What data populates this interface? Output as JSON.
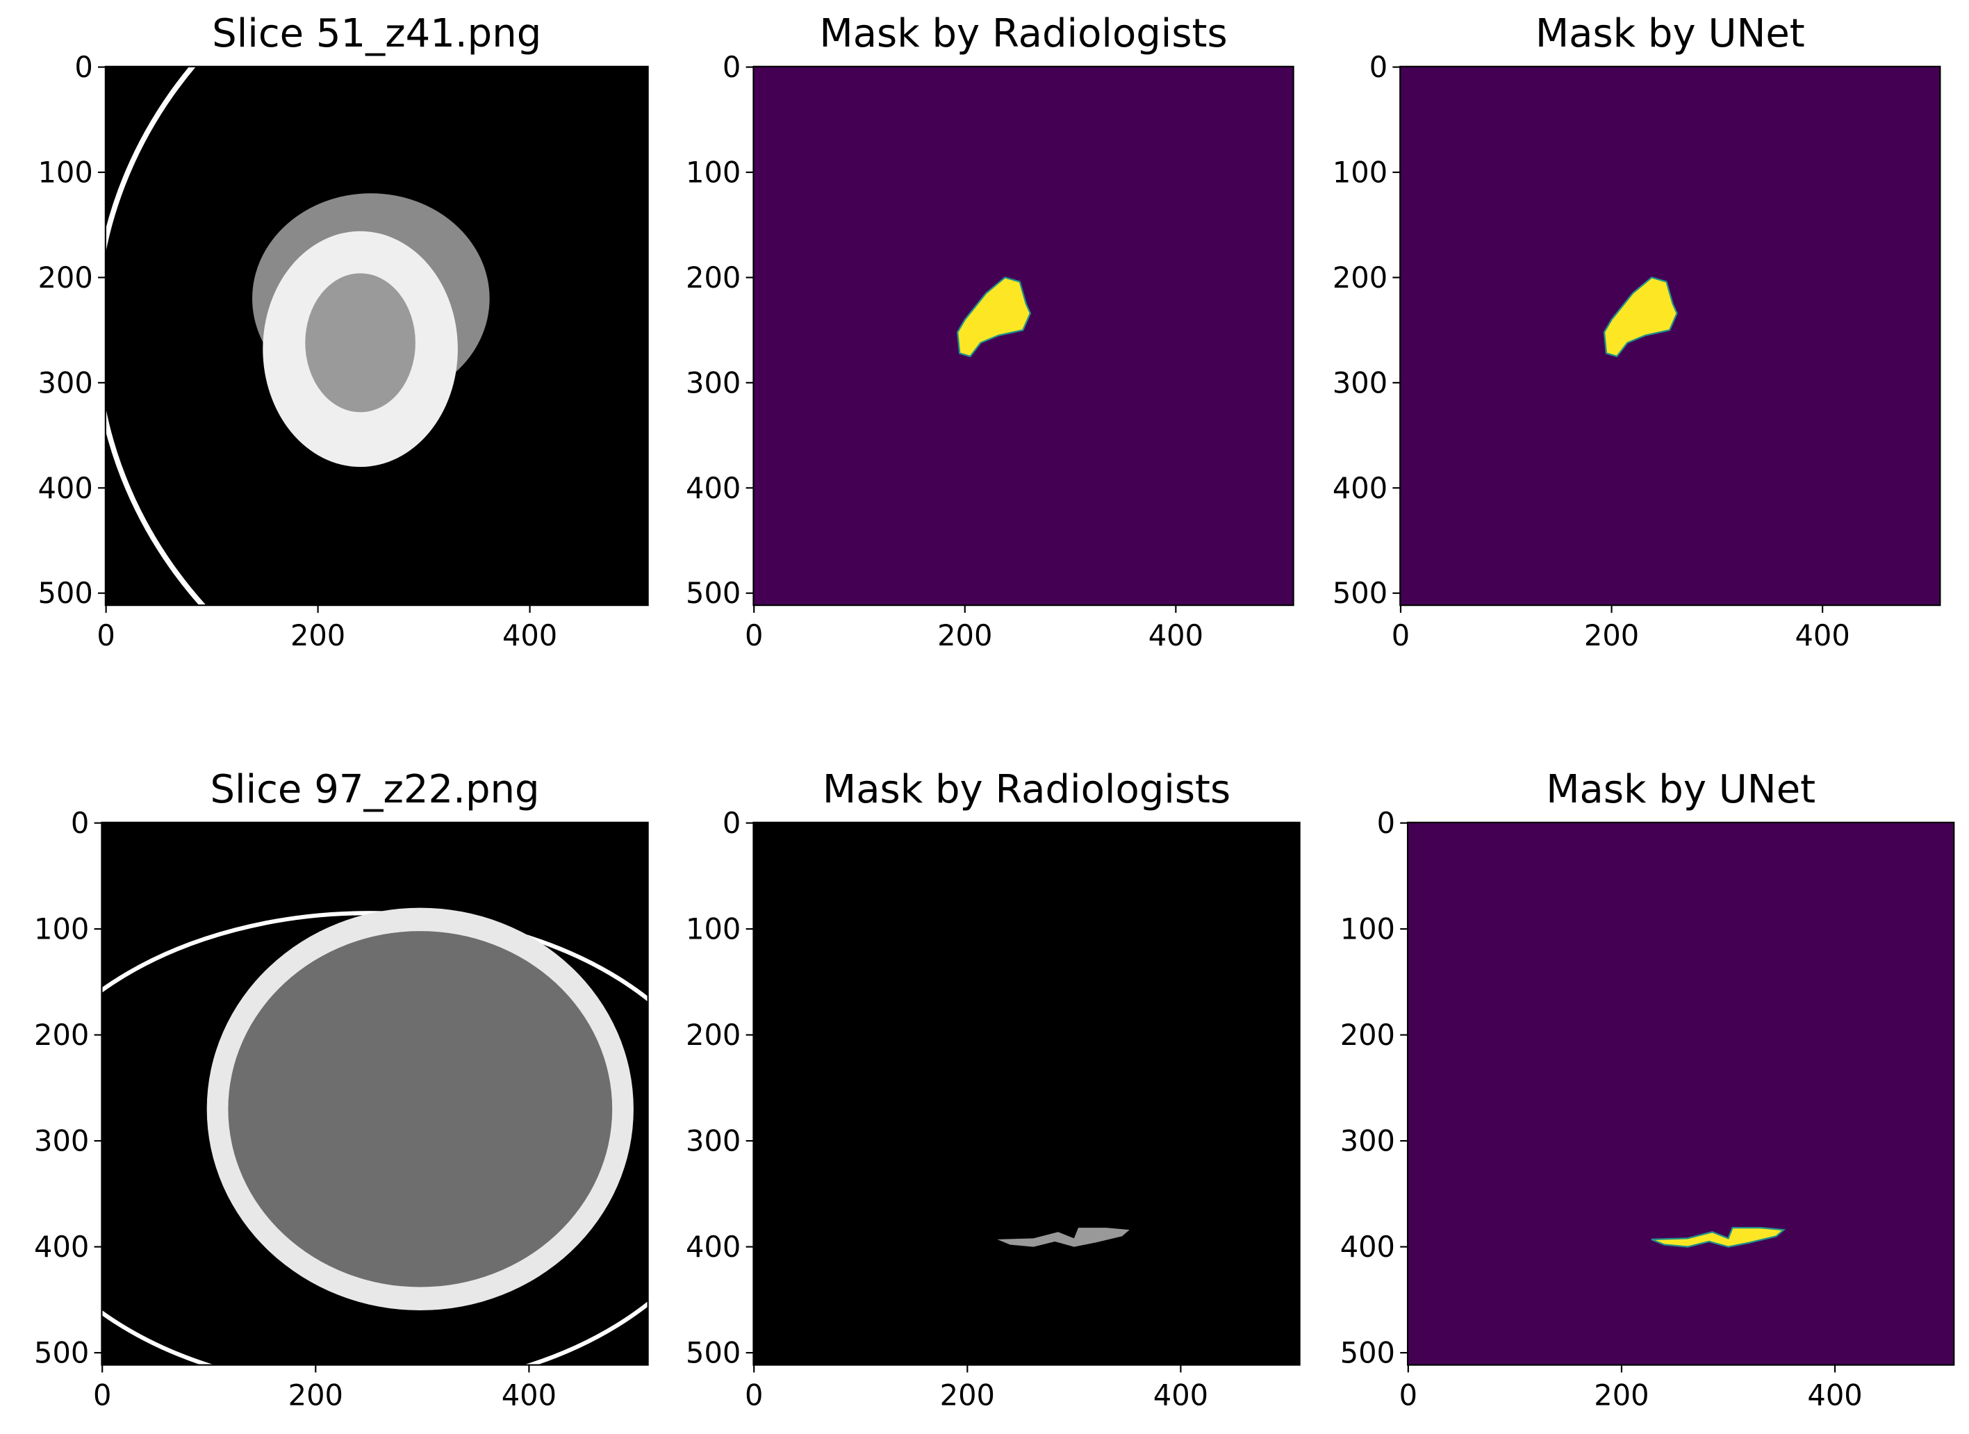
{
  "chart_data": [
    {
      "type": "image",
      "title": "Slice 51_z41.png",
      "xlim": [
        -0.5,
        511.5
      ],
      "ylim": [
        511.5,
        -0.5
      ],
      "xticks": [
        0,
        200,
        400
      ],
      "yticks": [
        0,
        100,
        200,
        300,
        400,
        500
      ]
    },
    {
      "type": "image",
      "title": "Mask by Radiologists",
      "xlim": [
        -0.5,
        511.5
      ],
      "ylim": [
        511.5,
        -0.5
      ],
      "xticks": [
        0,
        200,
        400
      ],
      "yticks": [
        0,
        100,
        200,
        300,
        400,
        500
      ]
    },
    {
      "type": "image",
      "title": "Mask by UNet",
      "xlim": [
        -0.5,
        511.5
      ],
      "ylim": [
        511.5,
        -0.5
      ],
      "xticks": [
        0,
        200,
        400
      ],
      "yticks": [
        0,
        100,
        200,
        300,
        400,
        500
      ]
    },
    {
      "type": "image",
      "title": "Slice 97_z22.png",
      "xlim": [
        -0.5,
        511.5
      ],
      "ylim": [
        511.5,
        -0.5
      ],
      "xticks": [
        0,
        200,
        400
      ],
      "yticks": [
        0,
        100,
        200,
        300,
        400,
        500
      ]
    },
    {
      "type": "image",
      "title": "Mask by Radiologists",
      "xlim": [
        -0.5,
        511.5
      ],
      "ylim": [
        511.5,
        -0.5
      ],
      "xticks": [
        0,
        200,
        400
      ],
      "yticks": [
        0,
        100,
        200,
        300,
        400,
        500
      ]
    },
    {
      "type": "image",
      "title": "Mask by UNet",
      "xlim": [
        -0.5,
        511.5
      ],
      "ylim": [
        511.5,
        -0.5
      ],
      "xticks": [
        0,
        200,
        400
      ],
      "yticks": [
        0,
        100,
        200,
        300,
        400,
        500
      ]
    }
  ]
}
